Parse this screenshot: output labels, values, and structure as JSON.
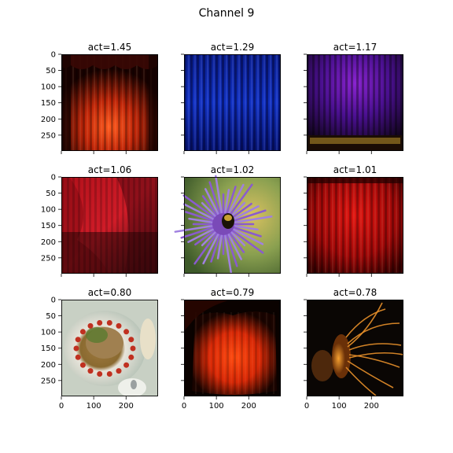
{
  "title": "Channel 9",
  "chart_data": {
    "type": "image-grid",
    "title": "Channel 9",
    "xlim": [
      0,
      299
    ],
    "ylim": [
      299,
      0
    ],
    "xticks": [
      0,
      100,
      200
    ],
    "yticks": [
      0,
      50,
      100,
      150,
      200,
      250
    ],
    "panels": [
      {
        "title": "act=1.45",
        "act": 1.45,
        "content": "red-stage-curtain"
      },
      {
        "title": "act=1.29",
        "act": 1.29,
        "content": "blue-curtain"
      },
      {
        "title": "act=1.17",
        "act": 1.17,
        "content": "purple-stage-curtain"
      },
      {
        "title": "act=1.06",
        "act": 1.06,
        "content": "red-draped-fabric"
      },
      {
        "title": "act=1.02",
        "act": 1.02,
        "content": "purple-flower-with-bee"
      },
      {
        "title": "act=1.01",
        "act": 1.01,
        "content": "red-curtain"
      },
      {
        "title": "act=0.80",
        "act": 0.8,
        "content": "plate-of-food"
      },
      {
        "title": "act=0.79",
        "act": 0.79,
        "content": "red-orange-curtain"
      },
      {
        "title": "act=0.78",
        "act": 0.78,
        "content": "jellyfish"
      }
    ]
  }
}
